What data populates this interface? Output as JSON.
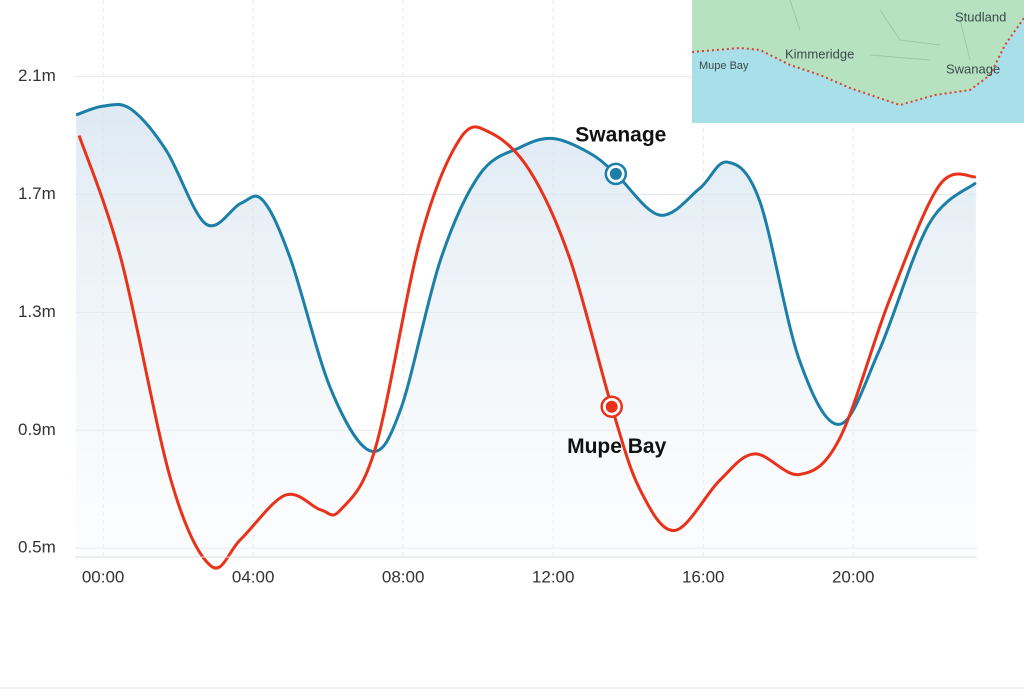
{
  "chart_data": {
    "type": "line",
    "xlim": [
      -0.75,
      23.3
    ],
    "xticks": [
      {
        "value": 0,
        "label": "00:00"
      },
      {
        "value": 4,
        "label": "04:00"
      },
      {
        "value": 8,
        "label": "08:00"
      },
      {
        "value": 12,
        "label": "12:00"
      },
      {
        "value": 16,
        "label": "16:00"
      },
      {
        "value": 20,
        "label": "20:00"
      }
    ],
    "ylim": [
      0.47,
      2.36
    ],
    "yticks": [
      {
        "value": 0.5,
        "label": "0.5m"
      },
      {
        "value": 0.9,
        "label": "0.9m"
      },
      {
        "value": 1.3,
        "label": "1.3m"
      },
      {
        "value": 1.7,
        "label": "1.7m"
      },
      {
        "value": 2.1,
        "label": "2.1m"
      }
    ],
    "grid": true,
    "series": [
      {
        "name": "Swanage",
        "color": "#1b7fa8",
        "x": [
          -0.72,
          0,
          0.74,
          1.68,
          2.74,
          3.67,
          4.26,
          5.0,
          6.07,
          7.13,
          7.93,
          9.0,
          10.05,
          11.12,
          12.0,
          12.98,
          13.67,
          14.84,
          15.9,
          16.64,
          17.5,
          18.56,
          19.63,
          20.69,
          22.02,
          23.27
        ],
        "values": [
          1.97,
          2.0,
          1.99,
          1.85,
          1.6,
          1.67,
          1.68,
          1.48,
          1.04,
          0.83,
          0.97,
          1.48,
          1.77,
          1.86,
          1.89,
          1.84,
          1.77,
          1.63,
          1.72,
          1.81,
          1.68,
          1.14,
          0.92,
          1.17,
          1.6,
          1.74
        ],
        "marker": {
          "x": 13.67,
          "y": 1.77
        }
      },
      {
        "name": "Mupe Bay",
        "color": "#e8321a",
        "x": [
          -0.64,
          0.48,
          1.81,
          2.87,
          3.67,
          4.86,
          5.8,
          6.33,
          7.26,
          8.46,
          9.52,
          10.32,
          11.38,
          12.45,
          13.56,
          14.31,
          15.24,
          16.44,
          17.37,
          18.56,
          19.63,
          20.96,
          22.29,
          23.27
        ],
        "values": [
          1.9,
          1.48,
          0.73,
          0.44,
          0.53,
          0.68,
          0.63,
          0.63,
          0.84,
          1.55,
          1.89,
          1.91,
          1.78,
          1.48,
          0.98,
          0.7,
          0.56,
          0.73,
          0.82,
          0.75,
          0.87,
          1.34,
          1.73,
          1.76
        ],
        "marker": {
          "x": 13.56,
          "y": 0.98
        }
      }
    ]
  },
  "map": {
    "labels": [
      "Studland",
      "Kimmeridge",
      "Mupe Bay",
      "Swanage"
    ]
  }
}
